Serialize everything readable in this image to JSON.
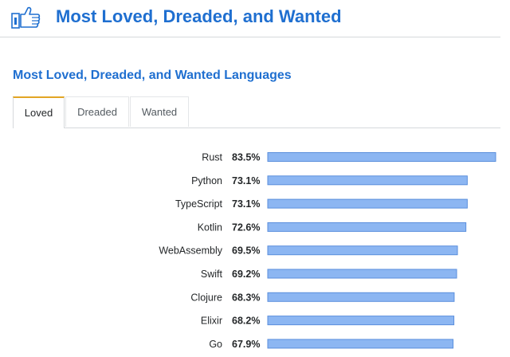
{
  "header": {
    "title": "Most Loved, Dreaded, and Wanted",
    "icon": "thumbs-up-icon"
  },
  "section": {
    "title": "Most Loved, Dreaded, and Wanted Languages"
  },
  "tabs": [
    {
      "label": "Loved",
      "active": true
    },
    {
      "label": "Dreaded",
      "active": false
    },
    {
      "label": "Wanted",
      "active": false
    }
  ],
  "colors": {
    "accent": "#1f6fd0",
    "bar_fill": "#8cb6f2",
    "bar_stroke": "#5b8fdc",
    "tab_active_border": "#e2a524"
  },
  "chart_data": {
    "type": "bar",
    "orientation": "horizontal",
    "value_suffix": "%",
    "categories": [
      "Rust",
      "Python",
      "TypeScript",
      "Kotlin",
      "WebAssembly",
      "Swift",
      "Clojure",
      "Elixir",
      "Go"
    ],
    "labels": [
      "83.5%",
      "73.1%",
      "73.1%",
      "72.6%",
      "69.5%",
      "69.2%",
      "68.3%",
      "68.2%",
      "67.9%"
    ],
    "values": [
      83.5,
      73.1,
      73.1,
      72.6,
      69.5,
      69.2,
      68.3,
      68.2,
      67.9
    ],
    "xlim": [
      0,
      83.5
    ],
    "grid": false,
    "title": "",
    "xlabel": "",
    "ylabel": ""
  }
}
